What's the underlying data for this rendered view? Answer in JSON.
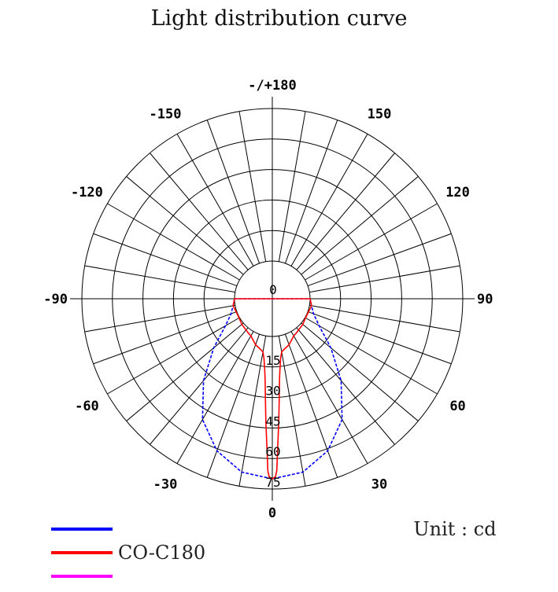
{
  "chart_data": {
    "type": "polar",
    "title": "Light distribution curve",
    "unit_label": "Unit : cd",
    "angle_tick_labels": [
      {
        "angle": 180,
        "label": "-/+180"
      },
      {
        "angle": -150,
        "label": "-150"
      },
      {
        "angle": 150,
        "label": "150"
      },
      {
        "angle": -120,
        "label": "-120"
      },
      {
        "angle": 120,
        "label": "120"
      },
      {
        "angle": -90,
        "label": "-90"
      },
      {
        "angle": 90,
        "label": "90"
      },
      {
        "angle": -60,
        "label": "-60"
      },
      {
        "angle": 60,
        "label": "60"
      },
      {
        "angle": -30,
        "label": "-30"
      },
      {
        "angle": 30,
        "label": "30"
      },
      {
        "angle": 0,
        "label": "0"
      }
    ],
    "radial_tick_labels": [
      "0",
      "15",
      "30",
      "45",
      "60",
      "75"
    ],
    "radial_max": 75,
    "ring_values": [
      15,
      30,
      45,
      60,
      75
    ],
    "grid": true,
    "series": [
      {
        "name": "",
        "color": "#0000ff",
        "style": "dashed",
        "points": [
          [
            -90,
            0
          ],
          [
            -80,
            1
          ],
          [
            -70,
            3
          ],
          [
            -60,
            8
          ],
          [
            -50,
            19
          ],
          [
            -40,
            34
          ],
          [
            -30,
            50
          ],
          [
            -20,
            61
          ],
          [
            -10,
            68
          ],
          [
            0,
            70
          ],
          [
            10,
            68
          ],
          [
            20,
            61
          ],
          [
            30,
            50
          ],
          [
            40,
            34
          ],
          [
            50,
            19
          ],
          [
            60,
            8
          ],
          [
            70,
            3
          ],
          [
            80,
            1
          ],
          [
            90,
            0
          ]
        ]
      },
      {
        "name": "CO-C180",
        "color": "#ff0000",
        "style": "solid",
        "points": [
          [
            -90,
            0
          ],
          [
            -80,
            1
          ],
          [
            -60,
            0.3
          ],
          [
            -50,
            1
          ],
          [
            -35,
            2
          ],
          [
            -30,
            2.5
          ],
          [
            -20,
            5.5
          ],
          [
            -15,
            6.5
          ],
          [
            -10,
            8
          ],
          [
            -8,
            11
          ],
          [
            -6,
            17
          ],
          [
            -5,
            22
          ],
          [
            -4,
            30
          ],
          [
            -3,
            42
          ],
          [
            -2,
            56
          ],
          [
            -1.5,
            66
          ],
          [
            -1,
            69
          ],
          [
            0,
            70
          ],
          [
            1,
            69
          ],
          [
            1.5,
            66
          ],
          [
            2,
            56
          ],
          [
            3,
            42
          ],
          [
            4,
            30
          ],
          [
            5,
            22
          ],
          [
            6,
            17
          ],
          [
            8,
            11
          ],
          [
            10,
            8
          ],
          [
            15,
            6.5
          ],
          [
            20,
            5.5
          ],
          [
            30,
            2.5
          ],
          [
            35,
            2
          ],
          [
            50,
            1
          ],
          [
            60,
            0.3
          ],
          [
            80,
            1
          ],
          [
            90,
            0
          ]
        ]
      }
    ],
    "legend": {
      "placement": "bottom-left",
      "entries": [
        {
          "label": "",
          "color": "#0000ff"
        },
        {
          "label": "CO-C180",
          "color": "#ff0000"
        },
        {
          "label": "",
          "color": "#ff00ff"
        }
      ]
    }
  }
}
